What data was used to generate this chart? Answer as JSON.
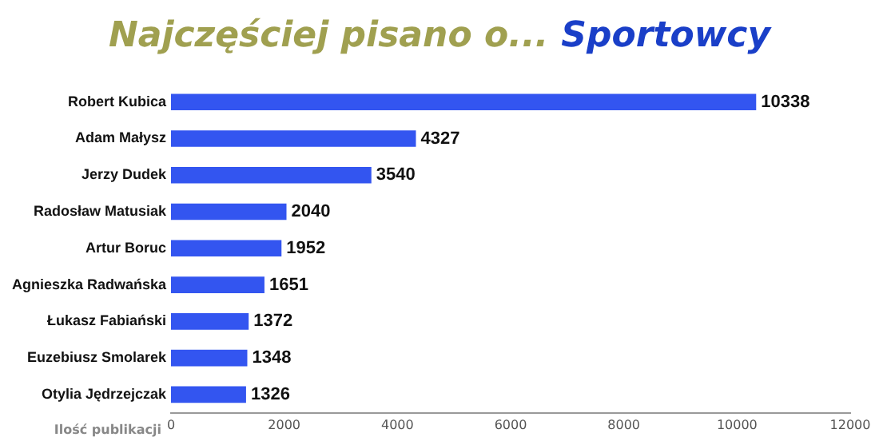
{
  "chart_data": {
    "type": "bar",
    "orientation": "horizontal",
    "title": "Najczęściej pisano o...",
    "subtitle": "Sportowcy",
    "xlabel": "Ilość publikacji",
    "categories": [
      "Robert Kubica",
      "Adam Małysz",
      "Jerzy Dudek",
      "Radosław Matusiak",
      "Artur Boruc",
      "Agnieszka Radwańska",
      "Łukasz Fabiański",
      "Euzebiusz Smolarek",
      "Otylia Jędrzejczak"
    ],
    "values": [
      10338,
      4327,
      3540,
      2040,
      1952,
      1651,
      1372,
      1348,
      1326
    ],
    "color": "#3355f0",
    "xlim": [
      0,
      12000
    ],
    "xticks": [
      0,
      2000,
      4000,
      6000,
      8000,
      10000,
      12000
    ],
    "data_labels": true,
    "grid": false,
    "legend": false
  }
}
